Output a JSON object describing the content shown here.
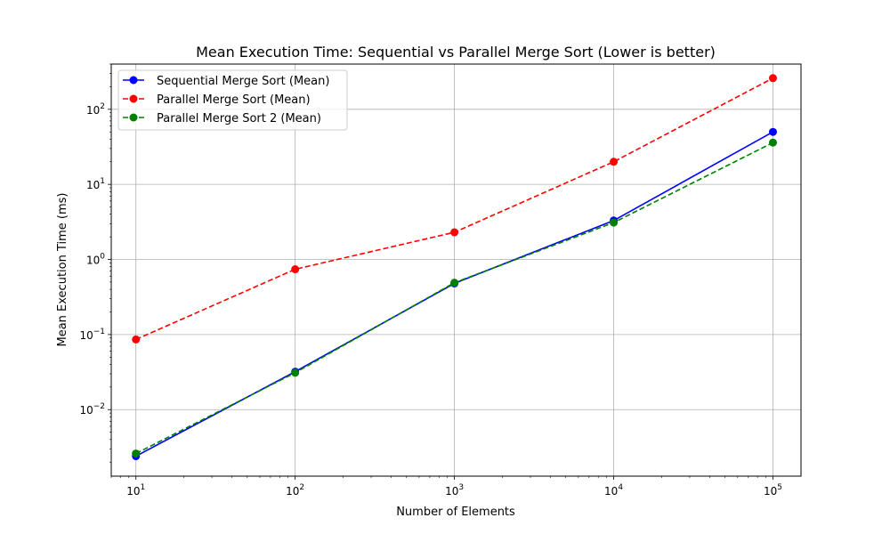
{
  "chart_data": {
    "type": "line",
    "title": "Mean Execution Time: Sequential vs Parallel Merge Sort (Lower is better)",
    "xlabel": "Number of Elements",
    "ylabel": "Mean Execution Time (ms)",
    "x_scale": "log",
    "y_scale": "log",
    "xlim": [
      7,
      150000
    ],
    "ylim": [
      0.0013,
      400
    ],
    "x_ticks": [
      {
        "value": 10,
        "base": "10",
        "exp": "1"
      },
      {
        "value": 100,
        "base": "10",
        "exp": "2"
      },
      {
        "value": 1000,
        "base": "10",
        "exp": "3"
      },
      {
        "value": 10000,
        "base": "10",
        "exp": "4"
      },
      {
        "value": 100000,
        "base": "10",
        "exp": "5"
      }
    ],
    "y_ticks": [
      {
        "value": 0.01,
        "base": "10",
        "exp": "−2"
      },
      {
        "value": 0.1,
        "base": "10",
        "exp": "−1"
      },
      {
        "value": 1,
        "base": "10",
        "exp": "0"
      },
      {
        "value": 10,
        "base": "10",
        "exp": "1"
      },
      {
        "value": 100,
        "base": "10",
        "exp": "2"
      }
    ],
    "grid": true,
    "legend_position": "top-left",
    "x": [
      10,
      100,
      1000,
      10000,
      100000
    ],
    "series": [
      {
        "name": "Sequential Merge Sort (Mean)",
        "color": "#0000ff",
        "dash": "solid",
        "marker": "circle",
        "values": [
          0.0024,
          0.032,
          0.48,
          3.3,
          50
        ]
      },
      {
        "name": "Parallel Merge Sort (Mean)",
        "color": "#ff0000",
        "dash": "dashed",
        "marker": "circle",
        "values": [
          0.086,
          0.74,
          2.3,
          20,
          260
        ]
      },
      {
        "name": "Parallel Merge Sort 2 (Mean)",
        "color": "#008000",
        "dash": "dashed",
        "marker": "circle",
        "values": [
          0.0026,
          0.031,
          0.49,
          3.1,
          36
        ]
      }
    ]
  }
}
